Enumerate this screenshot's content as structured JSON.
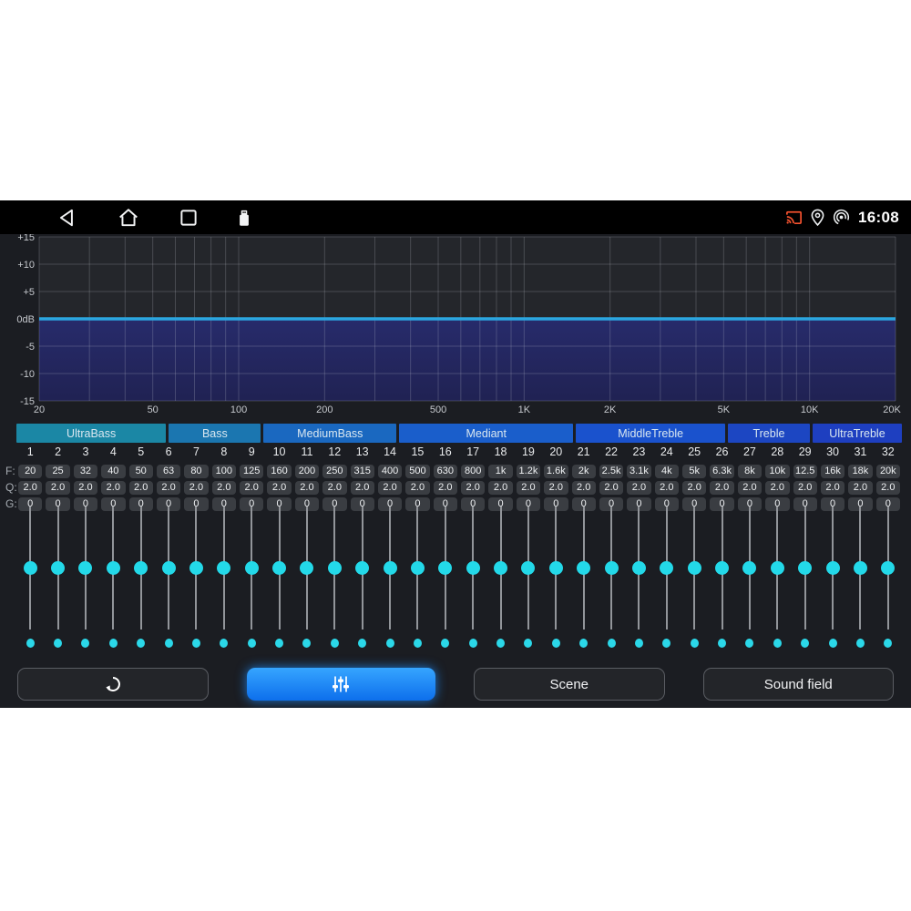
{
  "status_bar": {
    "time": "16:08",
    "nav_icons": [
      "back-icon",
      "home-icon",
      "recents-icon",
      "usb-icon"
    ],
    "right_icons": [
      "cast-icon",
      "location-icon",
      "hotspot-icon"
    ],
    "cast_color": "#f2512e"
  },
  "chart_data": {
    "type": "line",
    "title": "",
    "x_scale": "log",
    "xlim": [
      20,
      20000
    ],
    "ylim": [
      -15,
      15
    ],
    "x_major_ticks": [
      {
        "f": 20,
        "label": "20"
      },
      {
        "f": 50,
        "label": "50"
      },
      {
        "f": 100,
        "label": "100"
      },
      {
        "f": 200,
        "label": "200"
      },
      {
        "f": 500,
        "label": "500"
      },
      {
        "f": 1000,
        "label": "1K"
      },
      {
        "f": 2000,
        "label": "2K"
      },
      {
        "f": 5000,
        "label": "5K"
      },
      {
        "f": 10000,
        "label": "10K"
      },
      {
        "f": 20000,
        "label": "20K"
      }
    ],
    "x_minor_ticks": [
      30,
      40,
      60,
      70,
      80,
      90,
      300,
      400,
      600,
      700,
      800,
      900,
      3000,
      4000,
      6000,
      7000,
      8000,
      9000
    ],
    "y_ticks": [
      {
        "v": 15,
        "label": "+15"
      },
      {
        "v": 10,
        "label": "+10"
      },
      {
        "v": 5,
        "label": "+5"
      },
      {
        "v": 0,
        "label": "0dB"
      },
      {
        "v": -5,
        "label": "-5"
      },
      {
        "v": -10,
        "label": "-10"
      },
      {
        "v": -15,
        "label": "-15"
      }
    ],
    "series": [
      {
        "name": "eq-response",
        "x": [
          20,
          20000
        ],
        "y": [
          0,
          0
        ],
        "fill_below": true
      }
    ],
    "colors": {
      "plot_bg": "#24262b",
      "grid": "rgba(205,210,220,0.22)",
      "fill_top": "#272b6b",
      "fill_bottom": "#202253",
      "line": "#2ba6e0",
      "tick_text": "#c6c9ce"
    },
    "legend": null,
    "grid": true
  },
  "band_groups": [
    {
      "label": "UltraBass",
      "bands": 6,
      "color": "#1b87a5"
    },
    {
      "label": "Bass",
      "bands": 4,
      "color": "#1b76b0"
    },
    {
      "label": "MediumBass",
      "bands": 4,
      "color": "#1a68c0"
    },
    {
      "label": "Mediant",
      "bands": 8,
      "color": "#1a5ecb"
    },
    {
      "label": "MiddleTreble",
      "bands": 5,
      "color": "#1a52cd"
    },
    {
      "label": "Treble",
      "bands": 3,
      "color": "#1c46c2"
    },
    {
      "label": "UltraTreble",
      "bands": 2,
      "color": "#1e3fc0"
    }
  ],
  "bands": {
    "numbers": [
      "1",
      "2",
      "3",
      "4",
      "5",
      "6",
      "7",
      "8",
      "9",
      "10",
      "11",
      "12",
      "13",
      "14",
      "15",
      "16",
      "17",
      "18",
      "19",
      "20",
      "21",
      "22",
      "23",
      "24",
      "25",
      "26",
      "27",
      "28",
      "29",
      "30",
      "31",
      "32"
    ],
    "f_label": "F:",
    "q_label": "Q:",
    "g_label": "G:",
    "freq": [
      "20",
      "25",
      "32",
      "40",
      "50",
      "63",
      "80",
      "100",
      "125",
      "160",
      "200",
      "250",
      "315",
      "400",
      "500",
      "630",
      "800",
      "1k",
      "1.2k",
      "1.6k",
      "2k",
      "2.5k",
      "3.1k",
      "4k",
      "5k",
      "6.3k",
      "8k",
      "10k",
      "12.5",
      "16k",
      "18k",
      "20k"
    ],
    "q": [
      "2.0",
      "2.0",
      "2.0",
      "2.0",
      "2.0",
      "2.0",
      "2.0",
      "2.0",
      "2.0",
      "2.0",
      "2.0",
      "2.0",
      "2.0",
      "2.0",
      "2.0",
      "2.0",
      "2.0",
      "2.0",
      "2.0",
      "2.0",
      "2.0",
      "2.0",
      "2.0",
      "2.0",
      "2.0",
      "2.0",
      "2.0",
      "2.0",
      "2.0",
      "2.0",
      "2.0",
      "2.0"
    ],
    "gain": [
      "0",
      "0",
      "0",
      "0",
      "0",
      "0",
      "0",
      "0",
      "0",
      "0",
      "0",
      "0",
      "0",
      "0",
      "0",
      "0",
      "0",
      "0",
      "0",
      "0",
      "0",
      "0",
      "0",
      "0",
      "0",
      "0",
      "0",
      "0",
      "0",
      "0",
      "0",
      "0"
    ],
    "gain_db": [
      0,
      0,
      0,
      0,
      0,
      0,
      0,
      0,
      0,
      0,
      0,
      0,
      0,
      0,
      0,
      0,
      0,
      0,
      0,
      0,
      0,
      0,
      0,
      0,
      0,
      0,
      0,
      0,
      0,
      0,
      0,
      0
    ]
  },
  "accent": {
    "knob": "#23d9e9",
    "active_button": "#1789f5"
  },
  "buttons": [
    {
      "id": "reset",
      "icon": "reset-icon",
      "label": "",
      "active": false
    },
    {
      "id": "equalizer",
      "icon": "equalizer-icon",
      "label": "",
      "active": true
    },
    {
      "id": "scene",
      "icon": null,
      "label": "Scene",
      "active": false
    },
    {
      "id": "sound-field",
      "icon": null,
      "label": "Sound field",
      "active": false
    }
  ]
}
